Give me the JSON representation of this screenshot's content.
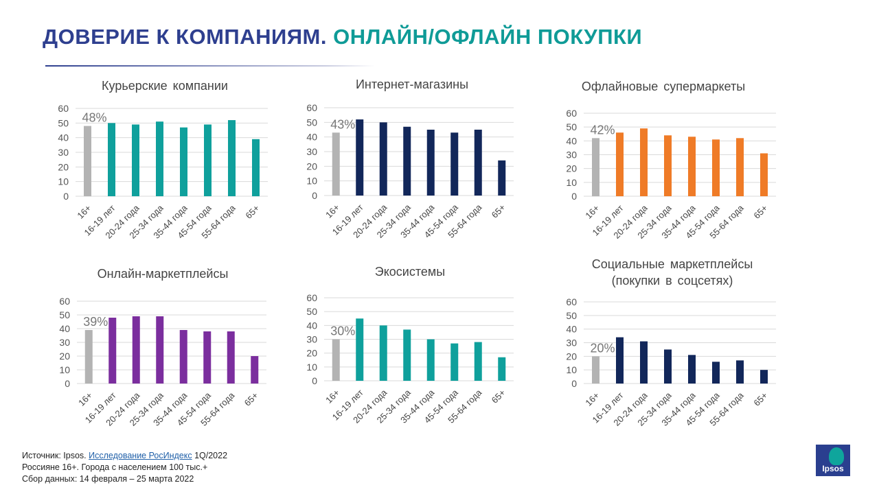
{
  "page": {
    "title_part1": "ДОВЕРИЕ К КОМПАНИЯМ.",
    "title_part2": "ОНЛАЙН/ОФЛАЙН ПОКУПКИ"
  },
  "footnote": {
    "source_prefix": "Источник: Ipsos. ",
    "source_link": "Исследование РосИндекс",
    "source_suffix": " 1Q/2022",
    "line2": "Россияне 16+. Города с населением 100 тыс.+",
    "line3": "Сбор данных: 14 февраля – 25 марта 2022"
  },
  "logo": {
    "text": "Ipsos"
  },
  "chart_data": [
    {
      "type": "bar",
      "title": "Курьерские компании",
      "categories": [
        "16+",
        "16-19 лет",
        "20-24 года",
        "25-34 года",
        "35-44 года",
        "45-54 года",
        "55-64 года",
        "65+"
      ],
      "values": [
        48,
        50,
        49,
        51,
        47,
        49,
        52,
        39
      ],
      "highlight_label": "48%",
      "ylim": [
        0,
        60
      ],
      "yticks": [
        0,
        10,
        20,
        30,
        40,
        50,
        60
      ],
      "color": "#0fa09c",
      "first_color": "#b3b3b3",
      "grid": true
    },
    {
      "type": "bar",
      "title": "Интернет-магазины",
      "categories": [
        "16+",
        "16-19 лет",
        "20-24 года",
        "25-34 года",
        "35-44 года",
        "45-54 года",
        "55-64 года",
        "65+"
      ],
      "values": [
        43,
        52,
        50,
        47,
        45,
        43,
        45,
        24
      ],
      "highlight_label": "43%",
      "ylim": [
        0,
        60
      ],
      "yticks": [
        0,
        10,
        20,
        30,
        40,
        50,
        60
      ],
      "color": "#12275a",
      "first_color": "#b3b3b3",
      "grid": true
    },
    {
      "type": "bar",
      "title": "Офлайновые супермаркеты",
      "categories": [
        "16+",
        "16-19 лет",
        "20-24 года",
        "25-34 года",
        "35-44 года",
        "45-54 года",
        "55-64 года",
        "65+"
      ],
      "values": [
        42,
        46,
        49,
        44,
        43,
        41,
        42,
        31
      ],
      "highlight_label": "42%",
      "ylim": [
        0,
        60
      ],
      "yticks": [
        0,
        10,
        20,
        30,
        40,
        50,
        60
      ],
      "color": "#ef7b27",
      "first_color": "#b3b3b3",
      "grid": true
    },
    {
      "type": "bar",
      "title": "Онлайн-маркетплейсы",
      "categories": [
        "16+",
        "16-19 лет",
        "20-24 года",
        "25-34 года",
        "35-44 года",
        "45-54 года",
        "55-64 года",
        "65+"
      ],
      "values": [
        39,
        48,
        49,
        49,
        39,
        38,
        38,
        20
      ],
      "highlight_label": "39%",
      "ylim": [
        0,
        60
      ],
      "yticks": [
        0,
        10,
        20,
        30,
        40,
        50,
        60
      ],
      "color": "#7b2e9e",
      "first_color": "#b3b3b3",
      "grid": true
    },
    {
      "type": "bar",
      "title": "Экосистемы",
      "categories": [
        "16+",
        "16-19 лет",
        "20-24 года",
        "25-34 года",
        "35-44 года",
        "45-54 года",
        "55-64 года",
        "65+"
      ],
      "values": [
        30,
        45,
        40,
        37,
        30,
        27,
        28,
        17
      ],
      "highlight_label": "30%",
      "ylim": [
        0,
        60
      ],
      "yticks": [
        0,
        10,
        20,
        30,
        40,
        50,
        60
      ],
      "color": "#0fa09c",
      "first_color": "#b3b3b3",
      "grid": true
    },
    {
      "type": "bar",
      "title": "Социальные маркетплейсы",
      "title_line2": "(покупки в соцсетях)",
      "categories": [
        "16+",
        "16-19 лет",
        "20-24 года",
        "25-34 года",
        "35-44 года",
        "45-54 года",
        "55-64 года",
        "65+"
      ],
      "values": [
        20,
        34,
        31,
        25,
        21,
        16,
        17,
        10
      ],
      "highlight_label": "20%",
      "ylim": [
        0,
        60
      ],
      "yticks": [
        0,
        10,
        20,
        30,
        40,
        50,
        60
      ],
      "color": "#12275a",
      "first_color": "#b3b3b3",
      "grid": true
    }
  ]
}
